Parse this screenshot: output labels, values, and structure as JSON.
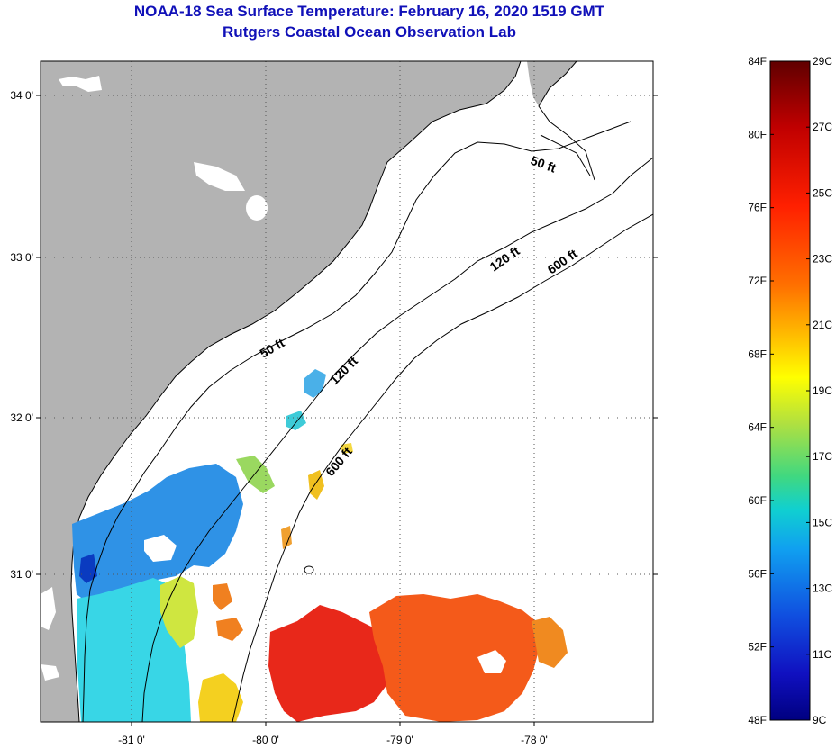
{
  "title": {
    "line1": "NOAA-18 Sea Surface Temperature:  February 16, 2020 1519 GMT",
    "line2": "Rutgers Coastal Ocean Observation Lab"
  },
  "map": {
    "lon_labels": [
      "-81 0'",
      "-80 0'",
      "-79 0'",
      "-78 0'"
    ],
    "lat_labels": [
      "34 0'",
      "33 0'",
      "32 0'",
      "31 0'"
    ],
    "contours": [
      "50 ft",
      "120 ft",
      "600 ft"
    ],
    "colors": {
      "land": "#b3b3b3",
      "grid": "#555555"
    }
  },
  "colorbar": {
    "f_labels": [
      "84F",
      "80F",
      "76F",
      "72F",
      "68F",
      "64F",
      "60F",
      "56F",
      "52F",
      "48F"
    ],
    "c_labels": [
      "29C",
      "27C",
      "25C",
      "23C",
      "21C",
      "19C",
      "17C",
      "15C",
      "13C",
      "11C",
      "9C"
    ],
    "stops": [
      "#600000",
      "#c00000",
      "#ff2000",
      "#ff7000",
      "#ffc000",
      "#ffff00",
      "#b0e040",
      "#40d880",
      "#10d0d0",
      "#10a0f0",
      "#1050e0",
      "#1010c0",
      "#000080"
    ]
  }
}
